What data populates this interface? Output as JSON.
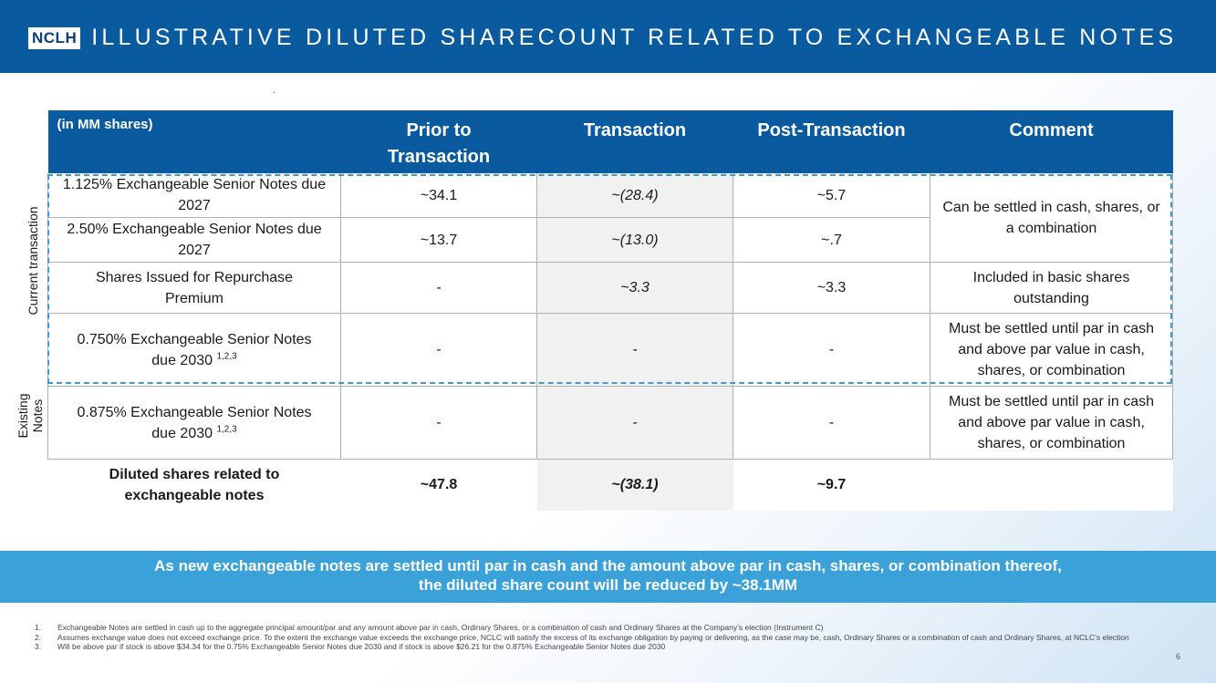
{
  "header": {
    "logo": "NCLH",
    "title": "ILLUSTRATIVE DILUTED SHARECOUNT RELATED TO EXCHANGEABLE NOTES"
  },
  "side_labels": {
    "current": "Current transaction",
    "existing_line1": "Existing",
    "existing_line2": "Notes"
  },
  "table": {
    "columns": {
      "units": "(in MM shares)",
      "prior": "Prior to Transaction",
      "transaction": "Transaction",
      "post": "Post-Transaction",
      "comment": "Comment"
    },
    "rows": [
      {
        "name": "1.125% Exchangeable Senior Notes due 2027",
        "prior": "~34.1",
        "transaction": "~(28.4)",
        "post": "~5.7"
      },
      {
        "name": "2.50% Exchangeable Senior Notes due 2027",
        "prior": "~13.7",
        "transaction": "~(13.0)",
        "post": "~.7"
      },
      {
        "name": "Shares Issued for Repurchase Premium",
        "prior": "-",
        "transaction": "~3.3",
        "post": "~3.3",
        "comment": "Included in basic shares outstanding"
      },
      {
        "name": "0.750% Exchangeable Senior Notes due 2030",
        "sup": "1,2,3",
        "prior": "-",
        "transaction": "-",
        "post": "-",
        "comment": "Must be settled until par in cash and above par value in cash, shares, or combination"
      },
      {
        "name": "0.875% Exchangeable Senior Notes due 2030",
        "sup": "1,2,3",
        "prior": "-",
        "transaction": "-",
        "post": "-",
        "comment": "Must be settled until par in cash and above par value  in cash, shares, or combination"
      }
    ],
    "merged_comment": "Can be settled in cash, shares, or a combination",
    "total": {
      "name": "Diluted shares related to exchangeable notes",
      "prior": "~47.8",
      "transaction": "~(38.1)",
      "post": "~9.7"
    }
  },
  "banner": {
    "line1": "As new exchangeable notes are settled until par in cash and the amount above par in cash, shares, or combination thereof,",
    "line2": "the diluted share count will be reduced by ~38.1MM"
  },
  "footnotes": [
    {
      "num": "1.",
      "text": "Exchangeable Notes are settled in cash up to the aggregate principal amount/par and any amount above par in cash, Ordinary Shares, or a combination of cash and Ordinary Shares at the Company’s election (Instrument C)"
    },
    {
      "num": "2.",
      "text": "Assumes exchange value does not exceed exchange price. To the extent the exchange value exceeds the exchange price, NCLC will satisfy the excess of its exchange obligation by paying or delivering, as the case may be, cash, Ordinary Shares or a combination of cash and Ordinary Shares, at NCLC’s election"
    },
    {
      "num": "3.",
      "text": "Will be above par if stock is above $34.34 for the 0.75% Exchangeable Senior Notes due 2030 and if stock is above $26.21 for the 0.875% Exchangeable Senior Notes due 2030"
    }
  ],
  "page_number": "6",
  "colors": {
    "header_bg": "#0a5aa0",
    "banner_bg": "#3aa2d8",
    "dash_border": "#3a9bd6"
  }
}
